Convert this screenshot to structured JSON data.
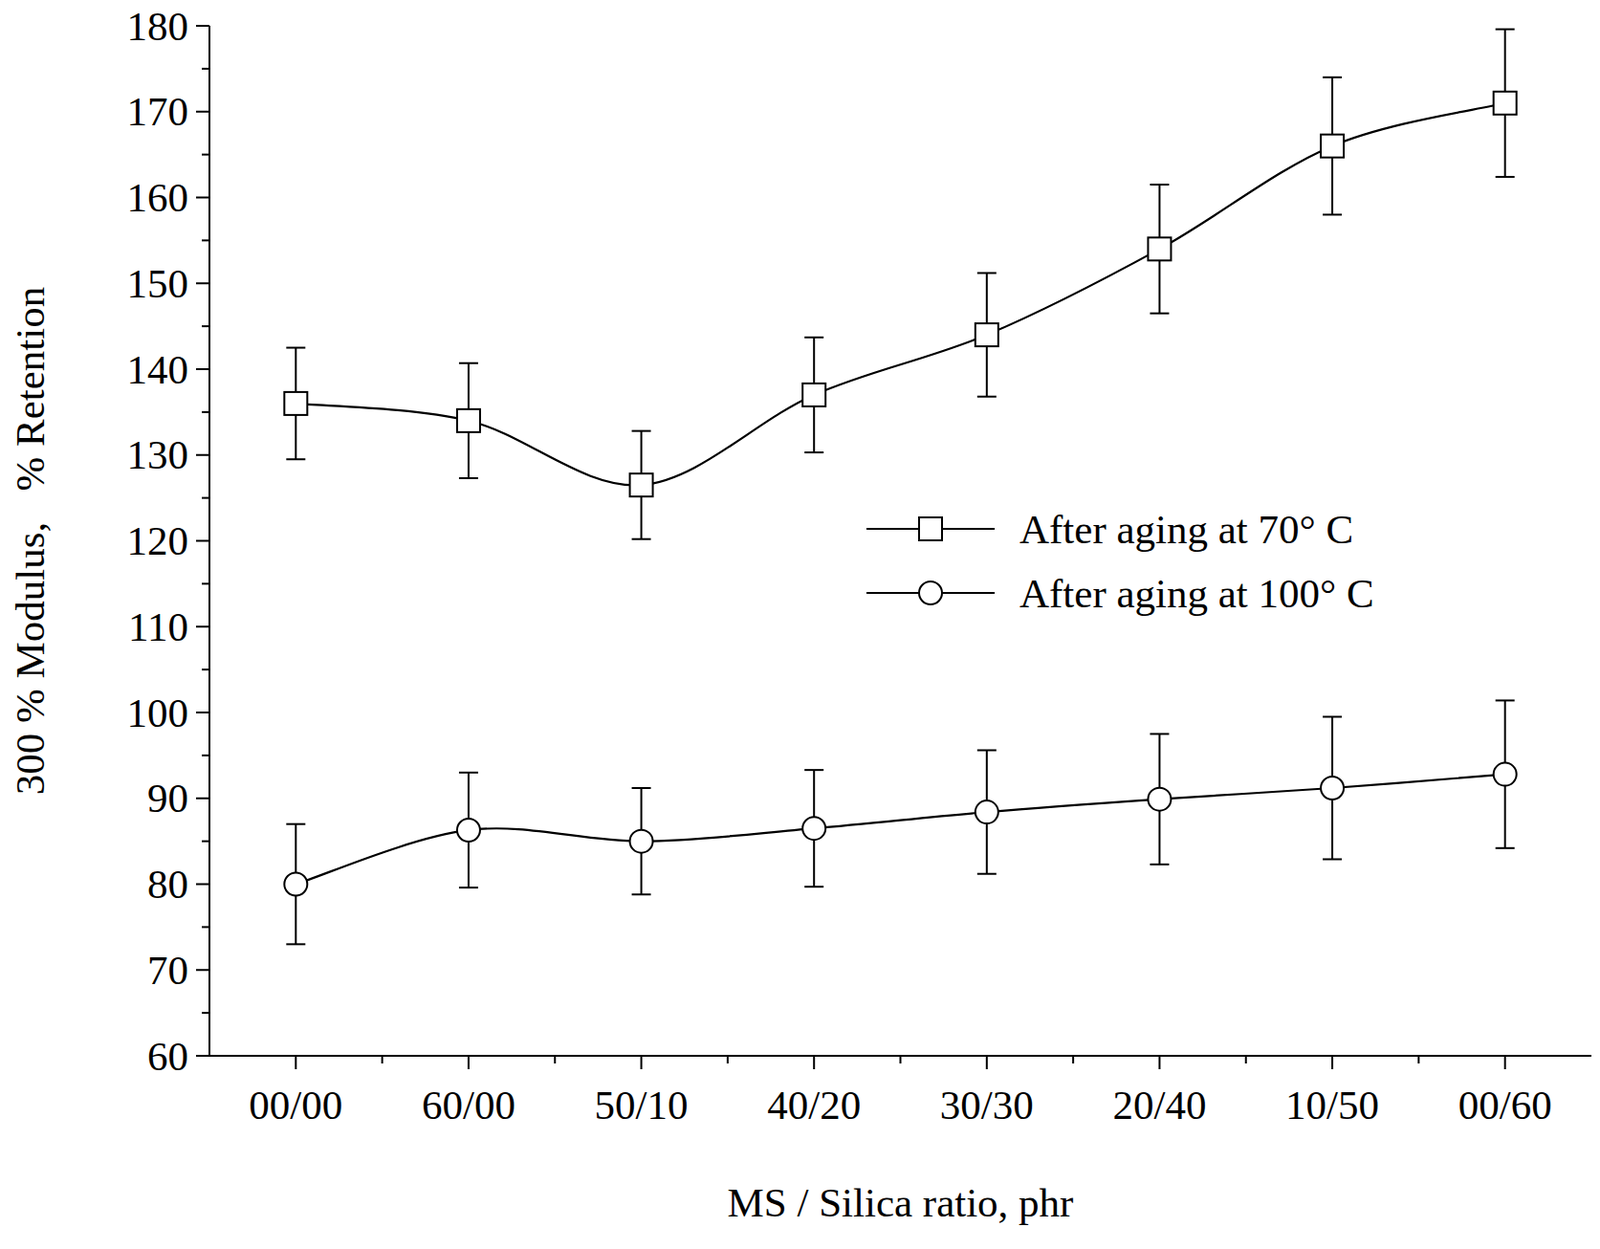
{
  "chart_data": {
    "type": "line",
    "x_label": "MS / Silica ratio, phr",
    "y_label": "300 % Modulus,   % Retention",
    "categories": [
      "00/00",
      "60/00",
      "50/10",
      "40/20",
      "30/30",
      "20/40",
      "10/50",
      "00/60"
    ],
    "ylim": [
      60,
      180
    ],
    "yticks": [
      60,
      70,
      80,
      90,
      100,
      110,
      120,
      130,
      140,
      150,
      160,
      170,
      180
    ],
    "grid": false,
    "legend": "right",
    "series": [
      {
        "name": "After aging at 70° C",
        "color": "#000000",
        "marker": "square",
        "line_style": "solid",
        "values": [
          136,
          134,
          126.5,
          137,
          144,
          154,
          166,
          171
        ],
        "errors": [
          6.5,
          6.7,
          6.3,
          6.7,
          7.2,
          7.5,
          8,
          8.6
        ]
      },
      {
        "name": "After aging at 100° C",
        "color": "#000000",
        "marker": "circle",
        "line_style": "solid",
        "values": [
          80,
          86.3,
          85,
          86.5,
          88.4,
          89.9,
          91.2,
          92.8
        ],
        "errors": [
          7,
          6.7,
          6.2,
          6.8,
          7.2,
          7.6,
          8.3,
          8.6
        ]
      }
    ]
  }
}
